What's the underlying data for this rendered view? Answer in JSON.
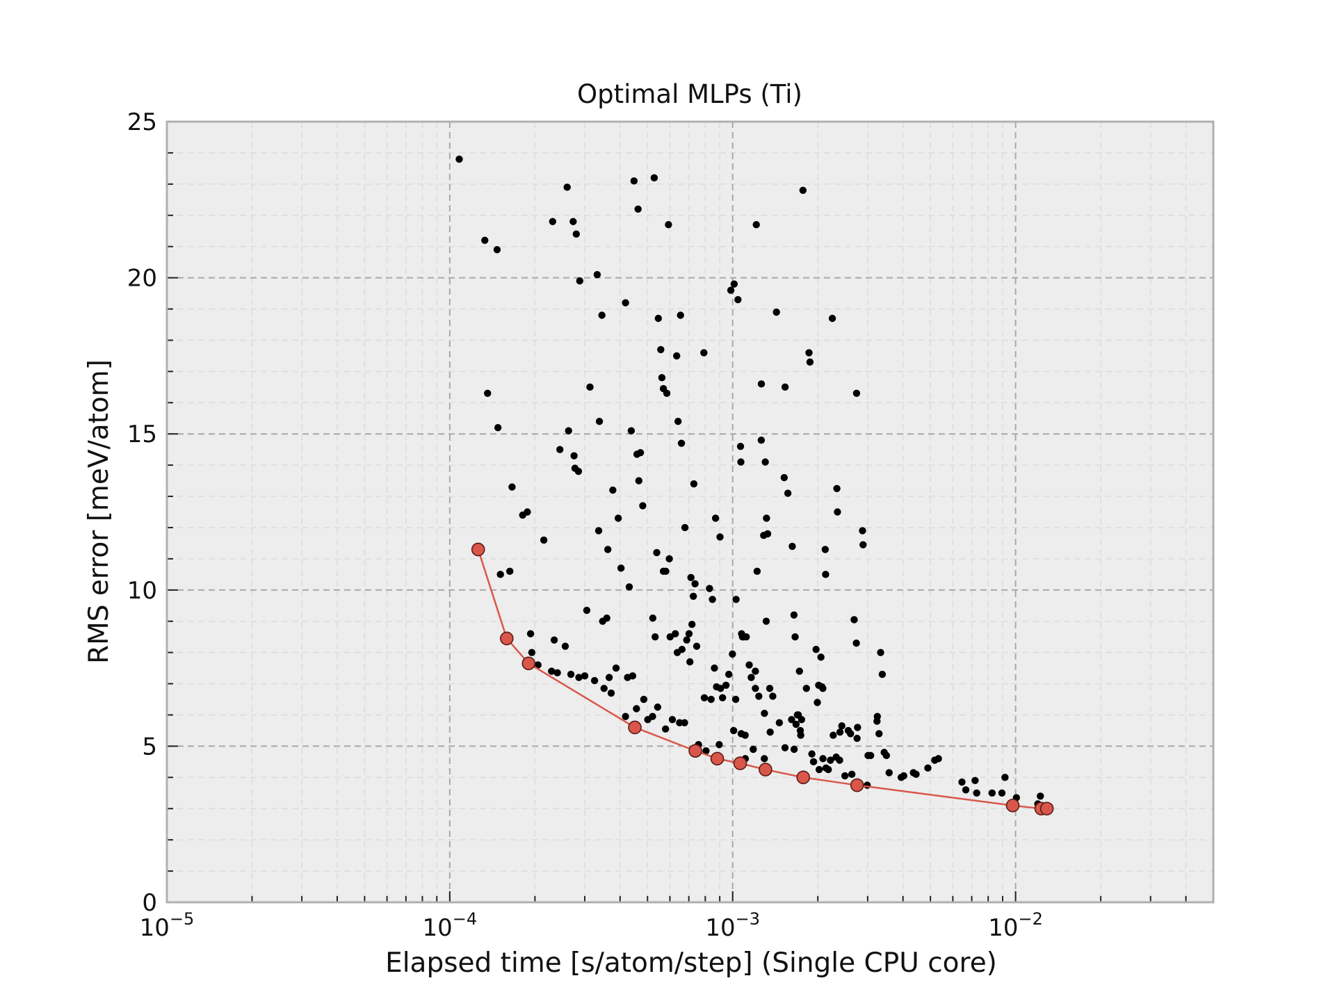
{
  "chart_data": {
    "type": "scatter",
    "title": "Optimal MLPs (Ti)",
    "xlabel": "Elapsed time [s/atom/step] (Single CPU core)",
    "ylabel": "RMS error [meV/atom]",
    "xscale": "log",
    "xlim": [
      1e-05,
      0.05
    ],
    "ylim": [
      0,
      25
    ],
    "grid": true,
    "x_ticks": [
      {
        "base": "10",
        "exp": "−5",
        "value": 1e-05
      },
      {
        "base": "10",
        "exp": "−4",
        "value": 0.0001
      },
      {
        "base": "10",
        "exp": "−3",
        "value": 0.001
      },
      {
        "base": "10",
        "exp": "−2",
        "value": 0.01
      }
    ],
    "y_ticks": [
      "0",
      "5",
      "10",
      "15",
      "20",
      "25"
    ],
    "colors": {
      "scatter": "#000000",
      "pareto_fill": "#d9574a",
      "pareto_edge": "#5a1a14",
      "line": "#d9574a",
      "plot_background": "#ededed",
      "grid": "#a8a8a8"
    },
    "series": [
      {
        "role": "all models",
        "points": [
          [
            0.000108,
            23.8
          ],
          [
            0.000133,
            21.2
          ],
          [
            0.000136,
            16.3
          ],
          [
            0.000147,
            20.9
          ],
          [
            0.000148,
            15.2
          ],
          [
            0.000151,
            10.5
          ],
          [
            0.000163,
            10.6
          ],
          [
            0.000166,
            13.3
          ],
          [
            0.000181,
            12.4
          ],
          [
            0.000188,
            12.5
          ],
          [
            0.000193,
            8.6
          ],
          [
            0.000195,
            8.0
          ],
          [
            0.000205,
            7.6
          ],
          [
            0.000215,
            11.6
          ],
          [
            0.000229,
            7.4
          ],
          [
            0.000231,
            21.8
          ],
          [
            0.000234,
            8.4
          ],
          [
            0.00024,
            7.35
          ],
          [
            0.000245,
            14.5
          ],
          [
            0.000256,
            8.2
          ],
          [
            0.00026,
            22.9
          ],
          [
            0.000263,
            15.1
          ],
          [
            0.000268,
            7.3
          ],
          [
            0.000273,
            21.8
          ],
          [
            0.000275,
            14.3
          ],
          [
            0.000277,
            13.9
          ],
          [
            0.00028,
            21.4
          ],
          [
            0.000285,
            13.8
          ],
          [
            0.000286,
            7.2
          ],
          [
            0.000288,
            19.9
          ],
          [
            0.0003,
            7.25
          ],
          [
            0.000305,
            9.35
          ],
          [
            0.000313,
            16.5
          ],
          [
            0.000325,
            7.1
          ],
          [
            0.000332,
            20.1
          ],
          [
            0.000336,
            11.9
          ],
          [
            0.000338,
            15.4
          ],
          [
            0.000345,
            18.8
          ],
          [
            0.000347,
            9.0
          ],
          [
            0.000351,
            6.85
          ],
          [
            0.000359,
            9.1
          ],
          [
            0.000362,
            11.3
          ],
          [
            0.000366,
            7.2
          ],
          [
            0.000372,
            6.7
          ],
          [
            0.000377,
            13.2
          ],
          [
            0.000387,
            7.5
          ],
          [
            0.000394,
            12.3
          ],
          [
            0.000403,
            10.7
          ],
          [
            0.000418,
            5.95
          ],
          [
            0.000418,
            19.2
          ],
          [
            0.000425,
            7.2
          ],
          [
            0.000431,
            10.1
          ],
          [
            0.000438,
            15.1
          ],
          [
            0.000443,
            7.25
          ],
          [
            0.000448,
            23.1
          ],
          [
            0.000457,
            6.2
          ],
          [
            0.000459,
            14.35
          ],
          [
            0.000463,
            22.2
          ],
          [
            0.000466,
            13.5
          ],
          [
            0.000472,
            14.4
          ],
          [
            0.000481,
            12.7
          ],
          [
            0.000485,
            6.5
          ],
          [
            0.000501,
            5.85
          ],
          [
            0.000521,
            5.95
          ],
          [
            0.000522,
            9.1
          ],
          [
            0.000528,
            23.2
          ],
          [
            0.000532,
            8.5
          ],
          [
            0.000539,
            11.2
          ],
          [
            0.000543,
            6.25
          ],
          [
            0.000546,
            18.7
          ],
          [
            0.000557,
            17.7
          ],
          [
            0.000562,
            16.8
          ],
          [
            0.000569,
            16.45
          ],
          [
            0.000569,
            10.6
          ],
          [
            0.000579,
            5.55
          ],
          [
            0.00058,
            10.6
          ],
          [
            0.000585,
            16.3
          ],
          [
            0.000593,
            21.7
          ],
          [
            0.000597,
            11.0
          ],
          [
            0.000601,
            8.5
          ],
          [
            0.000612,
            5.85
          ],
          [
            0.000627,
            8.6
          ],
          [
            0.000634,
            17.5
          ],
          [
            0.000637,
            8.0
          ],
          [
            0.000641,
            15.4
          ],
          [
            0.000649,
            5.75
          ],
          [
            0.000654,
            18.8
          ],
          [
            0.000659,
            14.7
          ],
          [
            0.000662,
            8.1
          ],
          [
            0.000676,
            5.75
          ],
          [
            0.000678,
            12.0
          ],
          [
            0.000688,
            8.4
          ],
          [
            0.000701,
            8.6
          ],
          [
            0.000706,
            7.7
          ],
          [
            0.000712,
            10.4
          ],
          [
            0.000718,
            8.9
          ],
          [
            0.000726,
            9.8
          ],
          [
            0.000729,
            13.4
          ],
          [
            0.000736,
            10.2
          ],
          [
            0.000746,
            8.2
          ],
          [
            0.000757,
            5.05
          ],
          [
            0.000791,
            17.6
          ],
          [
            0.000794,
            6.55
          ],
          [
            0.000805,
            4.85
          ],
          [
            0.000828,
            10.05
          ],
          [
            0.000839,
            6.5
          ],
          [
            0.000848,
            9.7
          ],
          [
            0.000862,
            7.5
          ],
          [
            0.00087,
            12.3
          ],
          [
            0.000877,
            6.9
          ],
          [
            0.000896,
            5.05
          ],
          [
            0.000902,
            11.7
          ],
          [
            0.000906,
            6.85
          ],
          [
            0.000921,
            6.55
          ],
          [
            0.000947,
            6.95
          ],
          [
            0.000969,
            7.3
          ],
          [
            0.000985,
            19.6
          ],
          [
            0.000998,
            7.95
          ],
          [
            0.001008,
            5.5
          ],
          [
            0.001012,
            19.8
          ],
          [
            0.001025,
            6.5
          ],
          [
            0.001028,
            9.7
          ],
          [
            0.001044,
            19.3
          ],
          [
            0.001066,
            14.6
          ],
          [
            0.001069,
            14.1
          ],
          [
            0.001072,
            5.4
          ],
          [
            0.001075,
            8.6
          ],
          [
            0.001083,
            8.5
          ],
          [
            0.001094,
            8.5
          ],
          [
            0.001107,
            5.35
          ],
          [
            0.001108,
            4.6
          ],
          [
            0.001117,
            8.5
          ],
          [
            0.001144,
            7.6
          ],
          [
            0.001163,
            7.2
          ],
          [
            0.001182,
            4.9
          ],
          [
            0.001203,
            7.4
          ],
          [
            0.001203,
            6.85
          ],
          [
            0.001212,
            21.7
          ],
          [
            0.00122,
            10.6
          ],
          [
            0.001237,
            6.6
          ],
          [
            0.001262,
            14.8
          ],
          [
            0.001263,
            16.6
          ],
          [
            0.001287,
            11.75
          ],
          [
            0.001294,
            4.6
          ],
          [
            0.001295,
            6.05
          ],
          [
            0.001304,
            14.1
          ],
          [
            0.001314,
            9.0
          ],
          [
            0.001317,
            12.3
          ],
          [
            0.001329,
            11.8
          ],
          [
            0.001352,
            6.85
          ],
          [
            0.001357,
            5.45
          ],
          [
            0.001386,
            6.6
          ],
          [
            0.001428,
            18.9
          ],
          [
            0.001462,
            5.75
          ],
          [
            0.001521,
            13.6
          ],
          [
            0.001531,
            4.95
          ],
          [
            0.001532,
            16.5
          ],
          [
            0.001567,
            13.1
          ],
          [
            0.001615,
            5.85
          ],
          [
            0.001624,
            11.4
          ],
          [
            0.001647,
            9.2
          ],
          [
            0.001649,
            4.9
          ],
          [
            0.001662,
            8.5
          ],
          [
            0.001675,
            5.7
          ],
          [
            0.001694,
            6.0
          ],
          [
            0.001706,
            6.0
          ],
          [
            0.001722,
            7.4
          ],
          [
            0.001734,
            5.5
          ],
          [
            0.00174,
            5.35
          ],
          [
            0.001752,
            5.85
          ],
          [
            0.001772,
            22.8
          ],
          [
            0.001822,
            6.85
          ],
          [
            0.001861,
            17.6
          ],
          [
            0.001876,
            17.3
          ],
          [
            0.001905,
            4.75
          ],
          [
            0.001931,
            4.5
          ],
          [
            0.001971,
            8.1
          ],
          [
            0.001992,
            6.4
          ],
          [
            0.002014,
            6.95
          ],
          [
            0.002022,
            4.25
          ],
          [
            0.002051,
            7.85
          ],
          [
            0.002068,
            6.9
          ],
          [
            0.002083,
            6.85
          ],
          [
            0.002085,
            4.6
          ],
          [
            0.002124,
            11.3
          ],
          [
            0.002131,
            10.5
          ],
          [
            0.002138,
            4.3
          ],
          [
            0.002178,
            4.25
          ],
          [
            0.002217,
            4.55
          ],
          [
            0.00225,
            18.7
          ],
          [
            0.002267,
            5.35
          ],
          [
            0.002322,
            4.65
          ],
          [
            0.002335,
            13.25
          ],
          [
            0.002346,
            12.5
          ],
          [
            0.002388,
            4.55
          ],
          [
            0.002395,
            5.45
          ],
          [
            0.002431,
            5.65
          ],
          [
            0.002493,
            4.05
          ],
          [
            0.002562,
            5.5
          ],
          [
            0.00261,
            5.4
          ],
          [
            0.002638,
            4.1
          ],
          [
            0.002688,
            9.05
          ],
          [
            0.002736,
            8.3
          ],
          [
            0.002741,
            16.3
          ],
          [
            0.002752,
            5.25
          ],
          [
            0.002763,
            5.6
          ],
          [
            0.002877,
            11.9
          ],
          [
            0.00289,
            11.45
          ],
          [
            0.00299,
            3.75
          ],
          [
            0.00301,
            4.7
          ],
          [
            0.003074,
            4.7
          ],
          [
            0.003237,
            5.8
          ],
          [
            0.003246,
            5.95
          ],
          [
            0.003291,
            5.4
          ],
          [
            0.003334,
            8.0
          ],
          [
            0.003379,
            7.3
          ],
          [
            0.003433,
            4.8
          ],
          [
            0.003495,
            4.7
          ],
          [
            0.003573,
            4.15
          ],
          [
            0.003942,
            4.0
          ],
          [
            0.004024,
            4.05
          ],
          [
            0.004353,
            4.15
          ],
          [
            0.004448,
            4.1
          ],
          [
            0.004897,
            4.3
          ],
          [
            0.005178,
            4.55
          ],
          [
            0.005336,
            4.6
          ],
          [
            0.006463,
            3.85
          ],
          [
            0.006669,
            3.6
          ],
          [
            0.007192,
            3.9
          ],
          [
            0.007287,
            3.5
          ],
          [
            0.00826,
            3.5
          ],
          [
            0.008949,
            3.5
          ],
          [
            0.009174,
            4.0
          ],
          [
            0.009514,
            3.1
          ],
          [
            0.010067,
            3.35
          ],
          [
            0.011983,
            3.15
          ],
          [
            0.012236,
            3.4
          ],
          [
            0.012469,
            3.0
          ]
        ]
      },
      {
        "role": "Pareto optimal",
        "points": [
          [
            0.000126,
            11.3
          ],
          [
            0.000159,
            8.45
          ],
          [
            0.00019,
            7.65
          ],
          [
            0.000451,
            5.6
          ],
          [
            0.000738,
            4.85
          ],
          [
            0.000882,
            4.6
          ],
          [
            0.001063,
            4.45
          ],
          [
            0.001306,
            4.25
          ],
          [
            0.001776,
            4.0
          ],
          [
            0.002753,
            3.75
          ],
          [
            0.009771,
            3.1
          ],
          [
            0.012323,
            3.0
          ],
          [
            0.012902,
            3.0
          ]
        ]
      }
    ]
  }
}
